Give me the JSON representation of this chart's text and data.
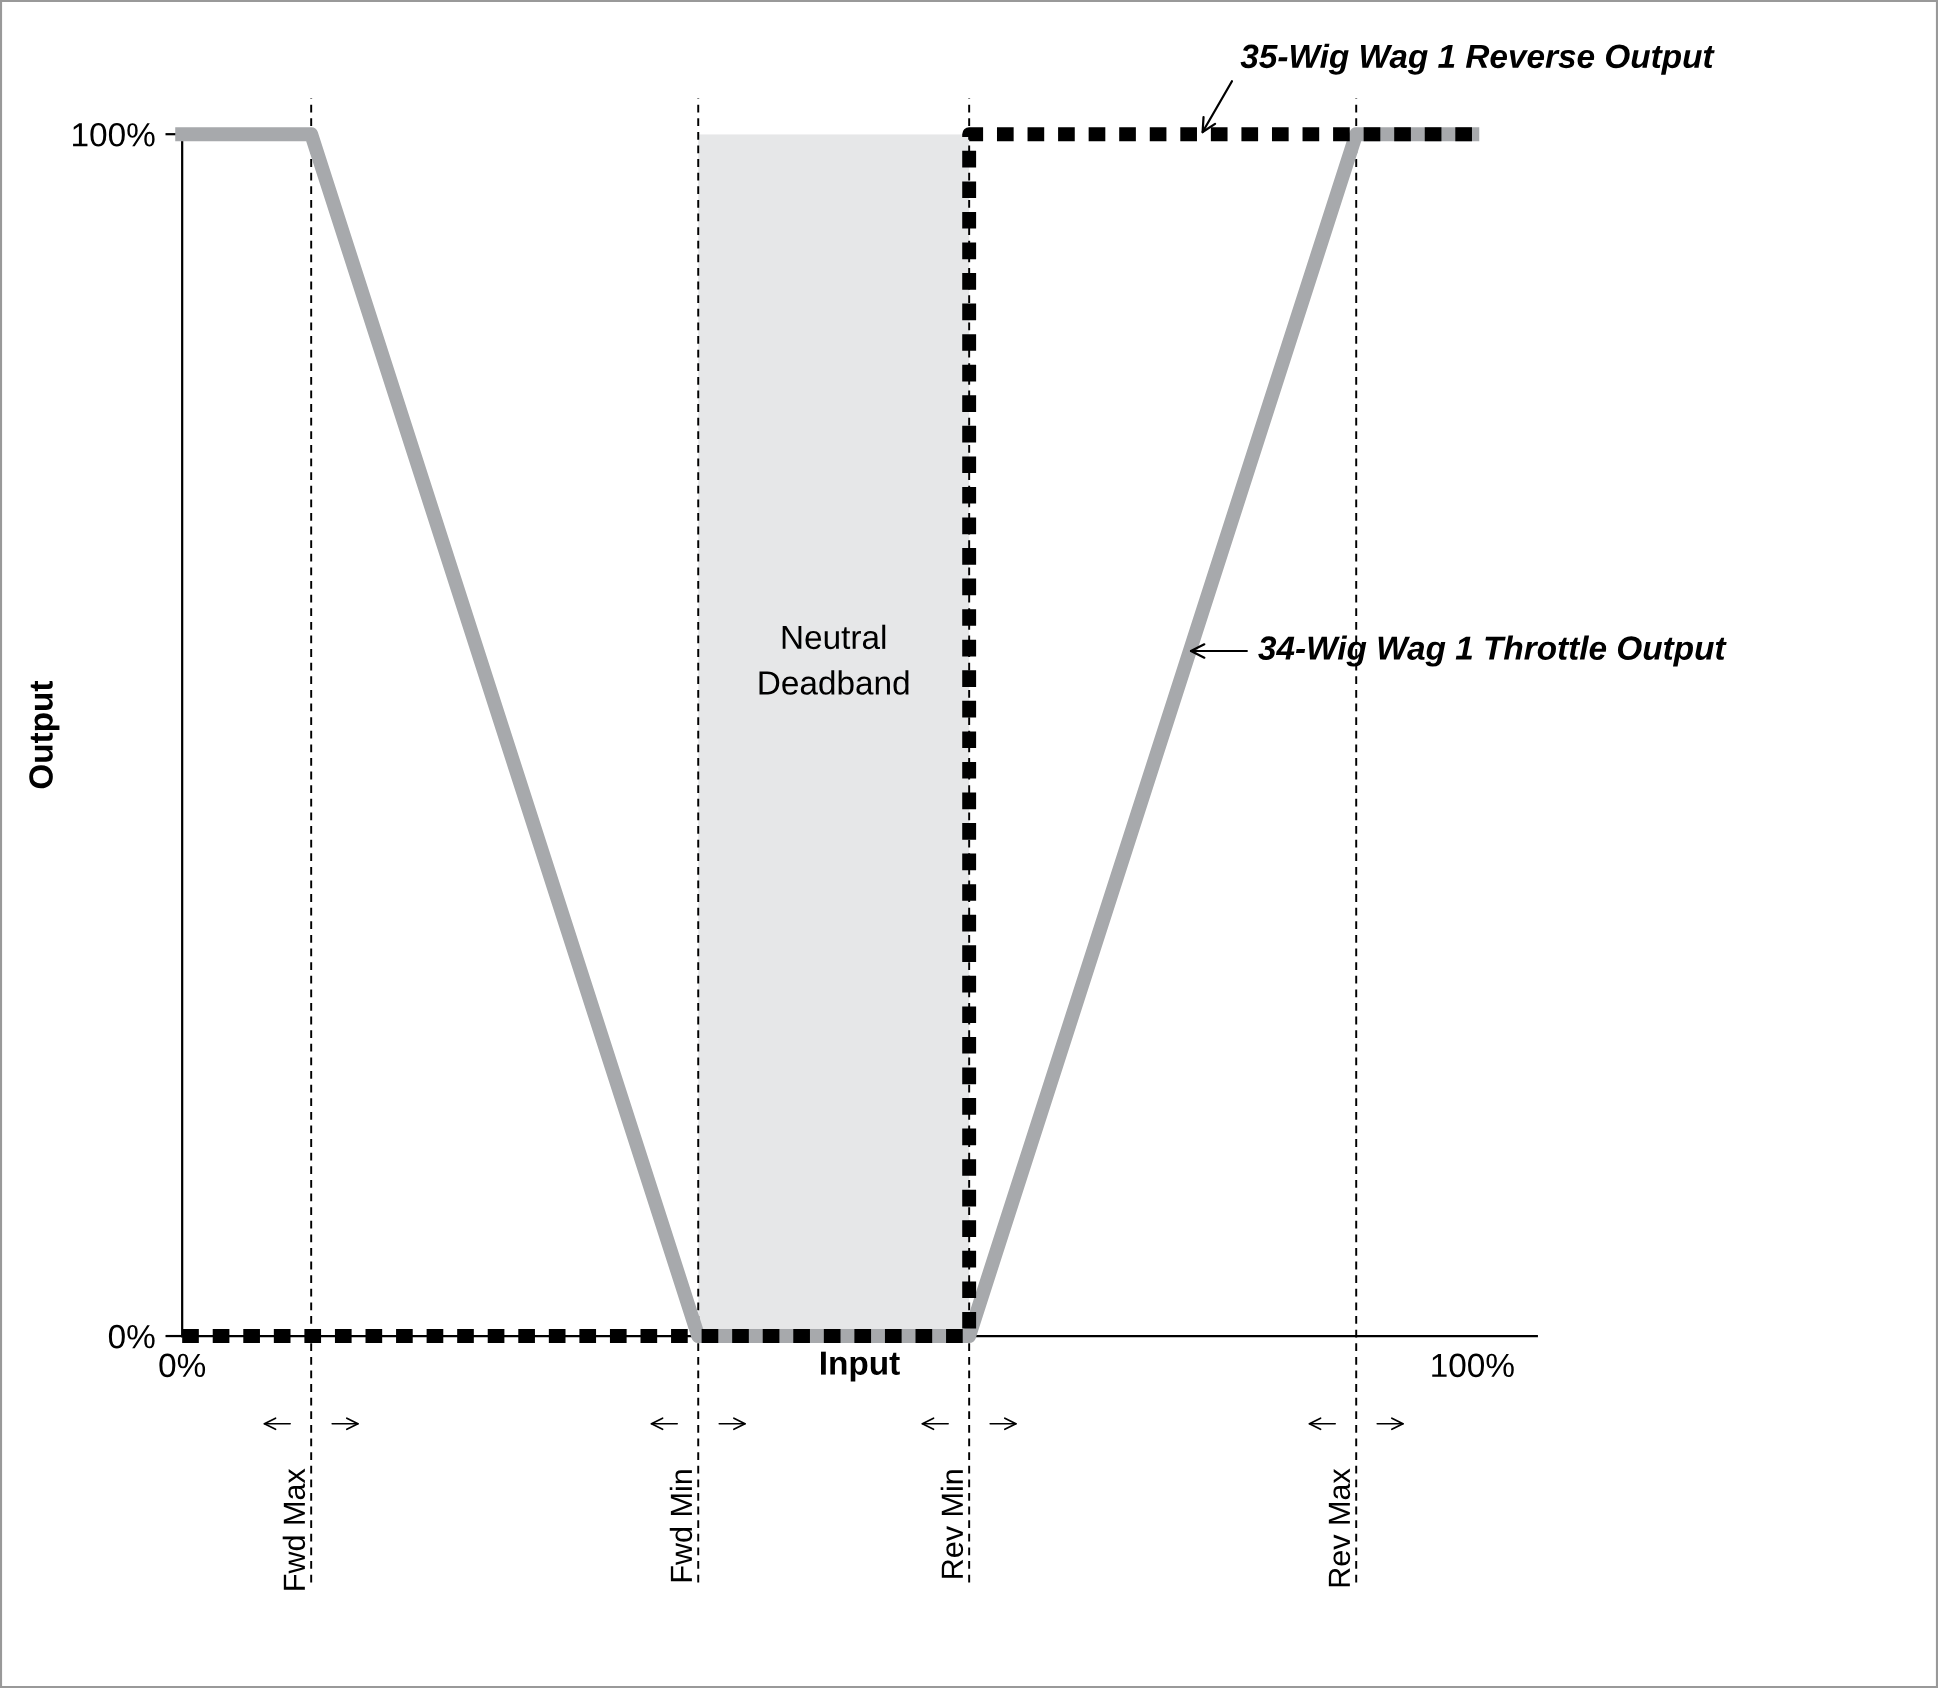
{
  "chart_data": {
    "type": "line",
    "xlabel": "Input",
    "ylabel": "Output",
    "xlim": [
      0,
      105
    ],
    "ylim": [
      0,
      100
    ],
    "xticks": [
      {
        "value": 0,
        "label": "0%"
      },
      {
        "value": 100,
        "label": "100%"
      }
    ],
    "yticks": [
      {
        "value": 0,
        "label": "0%"
      },
      {
        "value": 100,
        "label": "100%"
      }
    ],
    "grid": false,
    "marker": "none",
    "series": [
      {
        "x": [
          0,
          10,
          40,
          61,
          91,
          100
        ],
        "values": [
          100,
          100,
          0,
          0,
          100,
          100
        ],
        "color": "#a7a9ac",
        "line_style": "solid"
      },
      {
        "x": [
          0,
          61,
          61,
          100
        ],
        "values": [
          0,
          0,
          100,
          100
        ],
        "color": "#000000",
        "line_style": "dashed"
      }
    ],
    "bands": [
      {
        "axis": "x",
        "from": 40,
        "to": 61,
        "label": "Neutral Deadband",
        "color": "#e6e7e8"
      }
    ],
    "ref_lines": [
      {
        "axis": "x",
        "value": 10,
        "label": "Fwd Max",
        "color": "#000000",
        "line_style": "dashed"
      },
      {
        "axis": "x",
        "value": 40,
        "label": "Fwd Min",
        "color": "#000000",
        "line_style": "dashed"
      },
      {
        "axis": "x",
        "value": 61,
        "label": "Rev Min",
        "color": "#000000",
        "line_style": "dashed"
      },
      {
        "axis": "x",
        "value": 91,
        "label": "Rev Max",
        "color": "#000000",
        "line_style": "dashed"
      }
    ],
    "annotations": [
      {
        "text": "35-Wig Wag 1 Reverse Output",
        "x": 79,
        "y": 100
      },
      {
        "text": "34-Wig Wag 1 Throttle Output",
        "x": 78,
        "y": 57
      }
    ]
  }
}
